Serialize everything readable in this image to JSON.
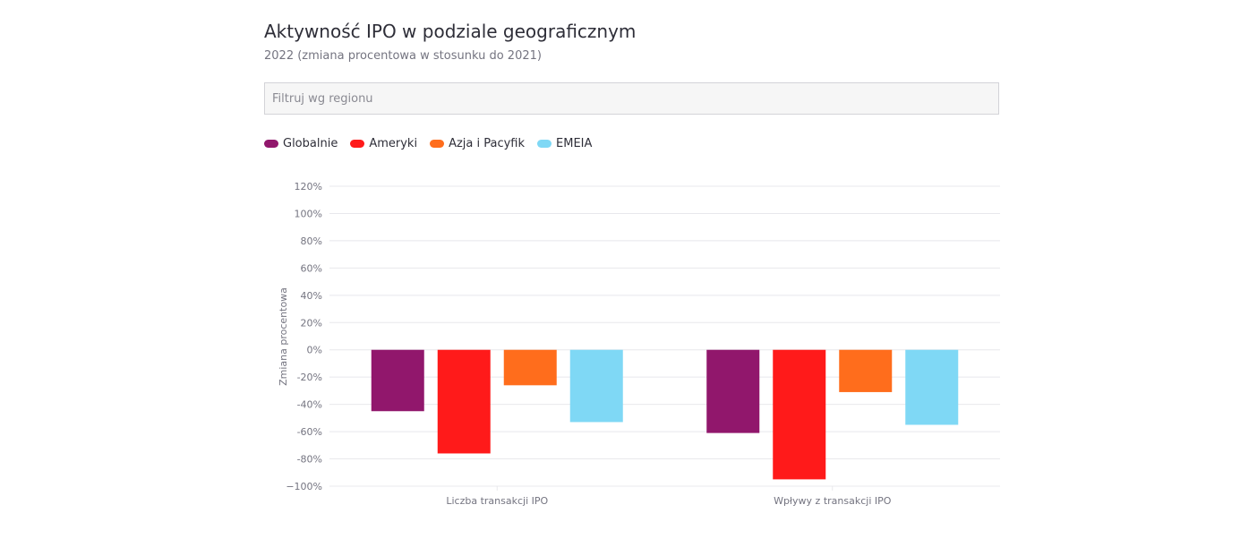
{
  "header": {
    "title": "Aktywność IPO w podziale geograficznym",
    "subtitle": "2022 (zmiana procentowa w stosunku do 2021)"
  },
  "filter": {
    "placeholder": "Filtruj wg regionu",
    "value": ""
  },
  "colors": {
    "globalnie": "#91176c",
    "ameryki": "#ff1a1a",
    "azja": "#ff6d1c",
    "emeia": "#7fd8f5",
    "grid": "#e8e8ec",
    "axis_text": "#747480"
  },
  "chart_data": {
    "type": "bar",
    "title": "Aktywność IPO w podziale geograficznym",
    "subtitle": "2022 (zmiana procentowa w stosunku do 2021)",
    "xlabel": "",
    "ylabel": "Zmiana procentowa",
    "ylim": [
      -100,
      120
    ],
    "yticks": [
      120,
      100,
      80,
      60,
      40,
      20,
      0,
      -20,
      -40,
      -60,
      -80,
      -100
    ],
    "ytick_labels": [
      "120%",
      "100%",
      "80%",
      "60%",
      "40%",
      "20%",
      "0%",
      "-20%",
      "-40%",
      "-60%",
      "-80%",
      "−100%"
    ],
    "categories": [
      "Liczba transakcji IPO",
      "Wpływy z transakcji IPO"
    ],
    "series": [
      {
        "name": "Globalnie",
        "color": "#91176c",
        "values": [
          -45,
          -61
        ]
      },
      {
        "name": "Ameryki",
        "color": "#ff1a1a",
        "values": [
          -76,
          -95
        ]
      },
      {
        "name": "Azja i Pacyfik",
        "color": "#ff6d1c",
        "values": [
          -26,
          -31
        ]
      },
      {
        "name": "EMEIA",
        "color": "#7fd8f5",
        "values": [
          -53,
          -55
        ]
      }
    ],
    "grid": true,
    "legend": "top-left"
  }
}
